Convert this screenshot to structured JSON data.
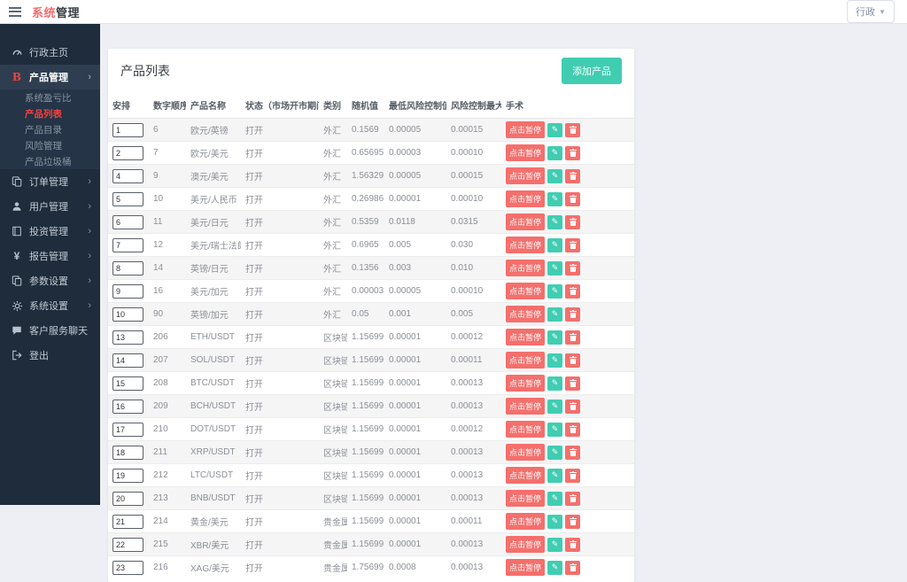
{
  "header": {
    "brand_red": "系统",
    "brand_dark": "管理",
    "admin_menu": "行政"
  },
  "sidebar": {
    "items": [
      {
        "label": "行政主页"
      },
      {
        "label": "产品管理"
      },
      {
        "label": "订单管理"
      },
      {
        "label": "用户管理"
      },
      {
        "label": "投资管理"
      },
      {
        "label": "报告管理"
      },
      {
        "label": "参数设置"
      },
      {
        "label": "系统设置"
      },
      {
        "label": "客户服务聊天"
      },
      {
        "label": "登出"
      }
    ],
    "submenu": [
      {
        "label": "系统盈亏比",
        "active": false
      },
      {
        "label": "产品列表",
        "active": true
      },
      {
        "label": "产品目录",
        "active": false
      },
      {
        "label": "风险管理",
        "active": false
      },
      {
        "label": "产品垃圾桶",
        "active": false
      }
    ]
  },
  "main": {
    "title": "产品列表",
    "add_button": "添加产品",
    "table": {
      "columns": [
        "安排",
        "数字顺序",
        "产品名称",
        "状态（市场开市期间）",
        "类别",
        "随机值",
        "最低风险控制值",
        "风险控制最大值",
        "手术"
      ],
      "pause_label": "点击暂停",
      "rows": [
        {
          "arrange": "1",
          "order": "6",
          "name": "欧元/英镑",
          "status": "打开",
          "category": "外汇",
          "random": "0.1569",
          "min_risk": "0.00005",
          "max_risk": "0.00015"
        },
        {
          "arrange": "2",
          "order": "7",
          "name": "欧元/美元",
          "status": "打开",
          "category": "外汇",
          "random": "0.65695",
          "min_risk": "0.00003",
          "max_risk": "0.00010"
        },
        {
          "arrange": "4",
          "order": "9",
          "name": "澳元/美元",
          "status": "打开",
          "category": "外汇",
          "random": "1.56329",
          "min_risk": "0.00005",
          "max_risk": "0.00015"
        },
        {
          "arrange": "5",
          "order": "10",
          "name": "美元/人民币",
          "status": "打开",
          "category": "外汇",
          "random": "0.26986",
          "min_risk": "0.00001",
          "max_risk": "0.00010"
        },
        {
          "arrange": "6",
          "order": "11",
          "name": "美元/日元",
          "status": "打开",
          "category": "外汇",
          "random": "0.5359",
          "min_risk": "0.0118",
          "max_risk": "0.0315"
        },
        {
          "arrange": "7",
          "order": "12",
          "name": "美元/瑞士法郎",
          "status": "打开",
          "category": "外汇",
          "random": "0.6965",
          "min_risk": "0.005",
          "max_risk": "0.030"
        },
        {
          "arrange": "8",
          "order": "14",
          "name": "英镑/日元",
          "status": "打开",
          "category": "外汇",
          "random": "0.1356",
          "min_risk": "0.003",
          "max_risk": "0.010"
        },
        {
          "arrange": "9",
          "order": "16",
          "name": "美元/加元",
          "status": "打开",
          "category": "外汇",
          "random": "0.00003",
          "min_risk": "0.00005",
          "max_risk": "0.00010"
        },
        {
          "arrange": "10",
          "order": "90",
          "name": "英镑/加元",
          "status": "打开",
          "category": "外汇",
          "random": "0.05",
          "min_risk": "0.001",
          "max_risk": "0.005"
        },
        {
          "arrange": "13",
          "order": "206",
          "name": "ETH/USDT",
          "status": "打开",
          "category": "区块链",
          "random": "1.15699",
          "min_risk": "0.00001",
          "max_risk": "0.00012"
        },
        {
          "arrange": "14",
          "order": "207",
          "name": "SOL/USDT",
          "status": "打开",
          "category": "区块链",
          "random": "1.15699",
          "min_risk": "0.00001",
          "max_risk": "0.00011"
        },
        {
          "arrange": "15",
          "order": "208",
          "name": "BTC/USDT",
          "status": "打开",
          "category": "区块链",
          "random": "1.15699",
          "min_risk": "0.00001",
          "max_risk": "0.00013"
        },
        {
          "arrange": "16",
          "order": "209",
          "name": "BCH/USDT",
          "status": "打开",
          "category": "区块链",
          "random": "1.15699",
          "min_risk": "0.00001",
          "max_risk": "0.00013"
        },
        {
          "arrange": "17",
          "order": "210",
          "name": "DOT/USDT",
          "status": "打开",
          "category": "区块链",
          "random": "1.15699",
          "min_risk": "0.00001",
          "max_risk": "0.00012"
        },
        {
          "arrange": "18",
          "order": "211",
          "name": "XRP/USDT",
          "status": "打开",
          "category": "区块链",
          "random": "1.15699",
          "min_risk": "0.00001",
          "max_risk": "0.00013"
        },
        {
          "arrange": "19",
          "order": "212",
          "name": "LTC/USDT",
          "status": "打开",
          "category": "区块链",
          "random": "1.15699",
          "min_risk": "0.00001",
          "max_risk": "0.00013"
        },
        {
          "arrange": "20",
          "order": "213",
          "name": "BNB/USDT",
          "status": "打开",
          "category": "区块链",
          "random": "1.15699",
          "min_risk": "0.00001",
          "max_risk": "0.00013"
        },
        {
          "arrange": "21",
          "order": "214",
          "name": "黄金/美元",
          "status": "打开",
          "category": "贵金属",
          "random": "1.15699",
          "min_risk": "0.00001",
          "max_risk": "0.00011"
        },
        {
          "arrange": "22",
          "order": "215",
          "name": "XBR/美元",
          "status": "打开",
          "category": "贵金属",
          "random": "1.15699",
          "min_risk": "0.00001",
          "max_risk": "0.00013"
        },
        {
          "arrange": "23",
          "order": "216",
          "name": "XAG/美元",
          "status": "打开",
          "category": "贵金属",
          "random": "1.75699",
          "min_risk": "0.0008",
          "max_risk": "0.00013"
        }
      ]
    }
  },
  "colors": {
    "accent_teal": "#41cdb2",
    "accent_red": "#f56f6c",
    "active_menu_red": "#f5413d",
    "sidebar_bg": "#1e2c3c"
  }
}
